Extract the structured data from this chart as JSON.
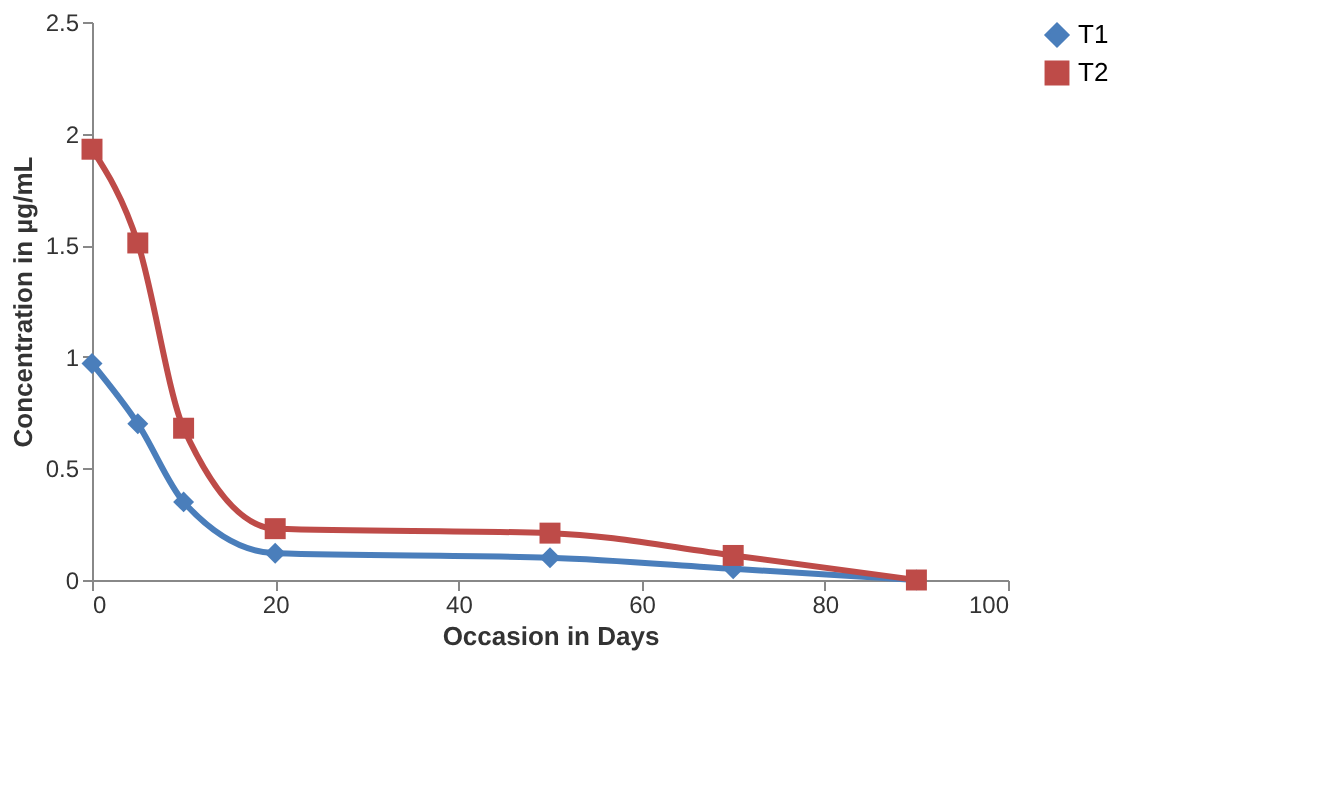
{
  "chart_data": {
    "type": "line",
    "xlabel": "Occasion in Days",
    "ylabel": "Concentration in µg/mL",
    "x": [
      0,
      5,
      10,
      20,
      50,
      70,
      90
    ],
    "series": [
      {
        "name": "T1",
        "color": "#4a7ebb",
        "marker": "diamond",
        "values": [
          0.97,
          0.7,
          0.35,
          0.12,
          0.1,
          0.05,
          0.0
        ]
      },
      {
        "name": "T2",
        "color": "#be4b48",
        "marker": "square",
        "values": [
          1.93,
          1.51,
          0.68,
          0.23,
          0.21,
          0.11,
          0.0
        ]
      }
    ],
    "xlim": [
      0,
      100
    ],
    "xticks": [
      0,
      20,
      40,
      60,
      80,
      100
    ],
    "ylim": [
      0,
      2.5
    ],
    "yticks": [
      0,
      0.5,
      1,
      1.5,
      2,
      2.5
    ],
    "grid": false,
    "legend": "right",
    "line_style": "solid"
  }
}
